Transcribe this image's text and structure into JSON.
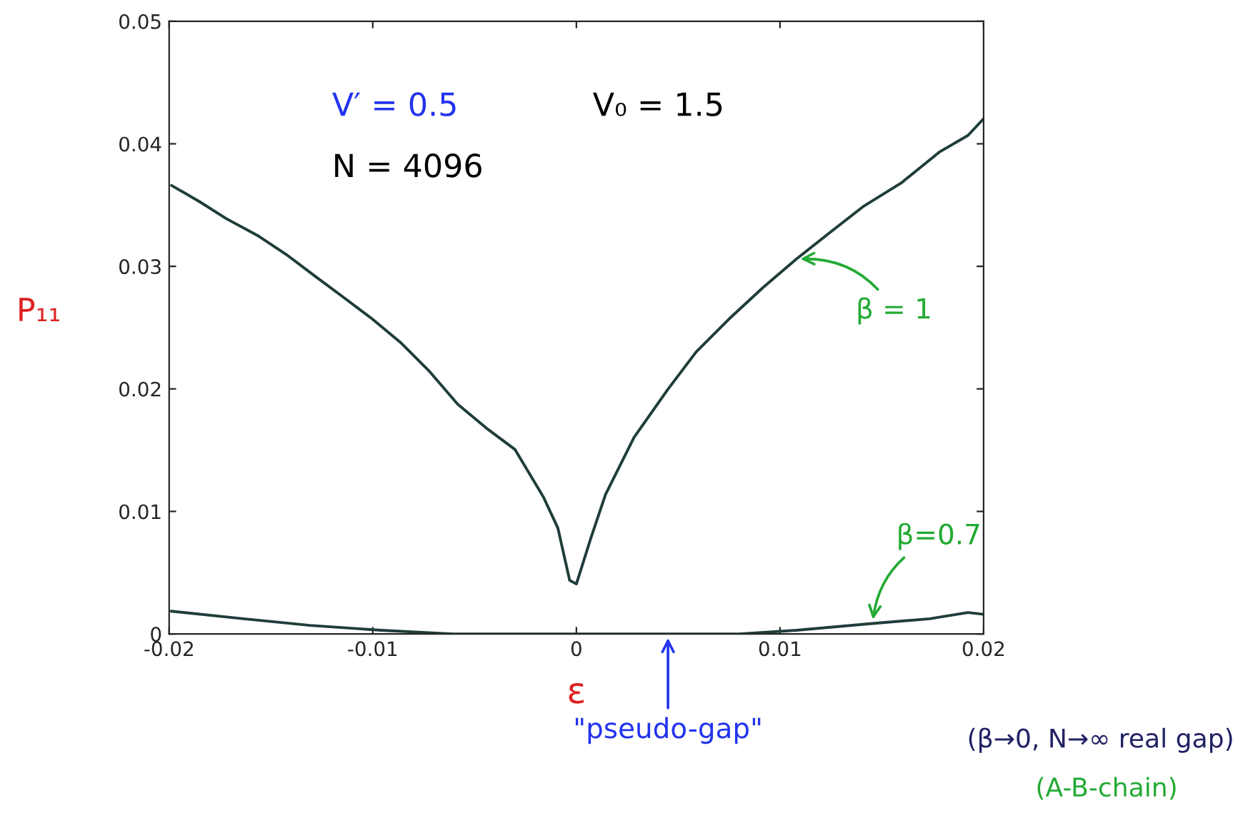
{
  "chart_data": {
    "type": "line",
    "xlabel": "ε",
    "ylabel": "P₁₁",
    "xlim": [
      -0.02,
      0.02
    ],
    "xticks": [
      -0.02,
      -0.01,
      0,
      0.01,
      0.02
    ],
    "ylim": [
      0,
      0.05
    ],
    "yticks": [
      0,
      0.01,
      0.02,
      0.03,
      0.04,
      0.05
    ],
    "grid": false,
    "legend": false,
    "marker": "none",
    "line_style": "solid",
    "series": [
      {
        "name": "β = 1",
        "color": "#1f3d3a",
        "x": [
          -0.01988,
          -0.01848,
          -0.01719,
          -0.01567,
          -0.01426,
          -0.01286,
          -0.01145,
          -0.01005,
          -0.00864,
          -0.00724,
          -0.00583,
          -0.00443,
          -0.00302,
          -0.00162,
          -0.00091,
          -0.00033,
          0.0,
          0.00072,
          0.00143,
          0.00283,
          0.00447,
          0.00588,
          0.00752,
          0.00916,
          0.0108,
          0.01243,
          0.01407,
          0.01595,
          0.01782,
          0.01923,
          0.02
        ],
        "values": [
          0.0366,
          0.03525,
          0.03389,
          0.03253,
          0.03098,
          0.02923,
          0.02749,
          0.02574,
          0.02379,
          0.02147,
          0.01875,
          0.01681,
          0.01506,
          0.01118,
          0.00865,
          0.00438,
          0.00408,
          0.00787,
          0.01137,
          0.01603,
          0.01991,
          0.02301,
          0.02574,
          0.02826,
          0.03059,
          0.03273,
          0.03486,
          0.0368,
          0.03932,
          0.04068,
          0.04205
        ]
      },
      {
        "name": "β=0.7",
        "color": "#1f3d3a",
        "x": [
          -0.0199,
          -0.0166,
          -0.01309,
          -0.00958,
          -0.00606,
          0.0,
          0.005,
          0.008,
          0.0108,
          0.01454,
          0.01735,
          0.01923,
          0.02
        ],
        "values": [
          0.00186,
          0.00128,
          0.0007,
          0.0003,
          0.0,
          0.0,
          0.0,
          0.0,
          0.0003,
          0.00085,
          0.00124,
          0.00175,
          0.0016
        ]
      }
    ],
    "annotations": [
      "V′ = 0.5",
      "N = 4096",
      "V₀ = 1.5",
      {
        "text": "\"pseudo-gap\"",
        "x": 0.0045,
        "y": 0
      },
      "(β→0, N→∞ real gap)",
      "(A-B-chain)"
    ]
  }
}
